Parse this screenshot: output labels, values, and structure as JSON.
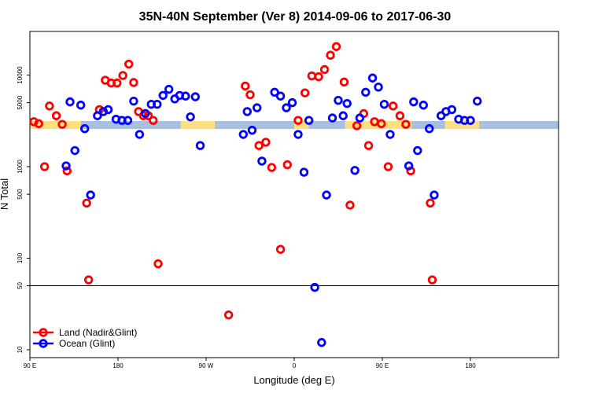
{
  "chart_data": {
    "type": "scatter",
    "title": "35N-40N September (Ver 8)   2014-09-06 to 2017-06-30",
    "xlabel": "Longitude (deg E)",
    "ylabel": "N Total",
    "x_axis": {
      "range_deg_from_90E": [
        0,
        540
      ],
      "ticks": [
        {
          "value": 0,
          "label": "90 E"
        },
        {
          "value": 90,
          "label": "180"
        },
        {
          "value": 180,
          "label": "90 W"
        },
        {
          "value": 270,
          "label": "0"
        },
        {
          "value": 360,
          "label": "90 E"
        },
        {
          "value": 450,
          "label": "180"
        }
      ]
    },
    "y_axis": {
      "scale": "log",
      "range": [
        8.2,
        30000
      ],
      "ticks": [
        {
          "value": 10,
          "label": "10"
        },
        {
          "value": 50,
          "label": "50"
        },
        {
          "value": 100,
          "label": "100"
        },
        {
          "value": 500,
          "label": "500"
        },
        {
          "value": 1000,
          "label": "1000"
        },
        {
          "value": 5000,
          "label": "5000"
        },
        {
          "value": 10000,
          "label": "10000"
        }
      ],
      "reference_line": 50
    },
    "land_mask": {
      "y_range": [
        2580,
        3150
      ],
      "ocean_color": "#A8C0E0",
      "land_color": "#FFE080",
      "land_segments": [
        [
          0,
          52
        ],
        [
          154,
          189
        ],
        [
          270,
          285
        ],
        [
          322,
          390
        ],
        [
          424,
          459
        ]
      ]
    },
    "grid": false,
    "legend_position": "bottom-left",
    "series": [
      {
        "name": "Land (Nadir&Glint)",
        "color": "#FF0000",
        "points": [
          [
            4,
            3100
          ],
          [
            9,
            2950
          ],
          [
            15,
            1000
          ],
          [
            20,
            4600
          ],
          [
            27,
            3600
          ],
          [
            33,
            2900
          ],
          [
            38,
            900
          ],
          [
            58,
            400
          ],
          [
            60,
            58
          ],
          [
            71,
            4200
          ],
          [
            77,
            8800
          ],
          [
            83,
            8200
          ],
          [
            89,
            8200
          ],
          [
            95,
            9900
          ],
          [
            101,
            13200
          ],
          [
            106,
            8300
          ],
          [
            111,
            4000
          ],
          [
            116,
            3600
          ],
          [
            121,
            3600
          ],
          [
            126,
            3200
          ],
          [
            131,
            87
          ],
          [
            203,
            24
          ],
          [
            220,
            7600
          ],
          [
            225,
            6100
          ],
          [
            234,
            1700
          ],
          [
            241,
            1850
          ],
          [
            247,
            980
          ],
          [
            256,
            125
          ],
          [
            263,
            1050
          ],
          [
            274,
            3200
          ],
          [
            281,
            6400
          ],
          [
            288,
            9800
          ],
          [
            295,
            9600
          ],
          [
            301,
            11500
          ],
          [
            307,
            16500
          ],
          [
            313,
            20500
          ],
          [
            321,
            8400
          ],
          [
            327,
            380
          ],
          [
            334,
            2800
          ],
          [
            341,
            3800
          ],
          [
            346,
            1700
          ],
          [
            352,
            3100
          ],
          [
            359,
            2950
          ],
          [
            366,
            1000
          ],
          [
            371,
            4600
          ],
          [
            378,
            3600
          ],
          [
            384,
            2900
          ],
          [
            389,
            900
          ],
          [
            409,
            400
          ],
          [
            411,
            58
          ]
        ]
      },
      {
        "name": "Ocean (Glint)",
        "color": "#0000FF",
        "points": [
          [
            37,
            1020
          ],
          [
            41,
            5100
          ],
          [
            46,
            1500
          ],
          [
            52,
            4700
          ],
          [
            56,
            2600
          ],
          [
            62,
            490
          ],
          [
            69,
            3600
          ],
          [
            75,
            4000
          ],
          [
            80,
            4200
          ],
          [
            88,
            3300
          ],
          [
            94,
            3200
          ],
          [
            100,
            3200
          ],
          [
            106,
            5200
          ],
          [
            112,
            2250
          ],
          [
            118,
            3800
          ],
          [
            124,
            4800
          ],
          [
            130,
            4800
          ],
          [
            136,
            6000
          ],
          [
            142,
            7000
          ],
          [
            148,
            5500
          ],
          [
            153,
            6000
          ],
          [
            159,
            5900
          ],
          [
            164,
            3500
          ],
          [
            169,
            5800
          ],
          [
            174,
            1700
          ],
          [
            218,
            2250
          ],
          [
            222,
            4000
          ],
          [
            227,
            2500
          ],
          [
            232,
            4400
          ],
          [
            237,
            1150
          ],
          [
            250,
            6500
          ],
          [
            256,
            5900
          ],
          [
            262,
            4400
          ],
          [
            268,
            5000
          ],
          [
            274,
            2250
          ],
          [
            280,
            870
          ],
          [
            285,
            3200
          ],
          [
            291,
            48
          ],
          [
            298,
            12
          ],
          [
            303,
            490
          ],
          [
            309,
            3400
          ],
          [
            315,
            5300
          ],
          [
            320,
            3600
          ],
          [
            324,
            4900
          ],
          [
            332,
            910
          ],
          [
            337,
            3400
          ],
          [
            343,
            6500
          ],
          [
            350,
            9300
          ],
          [
            356,
            7400
          ],
          [
            362,
            4800
          ],
          [
            368,
            2250
          ],
          [
            387,
            1020
          ],
          [
            392,
            5100
          ],
          [
            396,
            1500
          ],
          [
            402,
            4700
          ],
          [
            408,
            2600
          ],
          [
            413,
            490
          ],
          [
            420,
            3600
          ],
          [
            425,
            4000
          ],
          [
            431,
            4200
          ],
          [
            438,
            3300
          ],
          [
            444,
            3200
          ],
          [
            450,
            3200
          ],
          [
            457,
            5200
          ]
        ]
      }
    ]
  }
}
